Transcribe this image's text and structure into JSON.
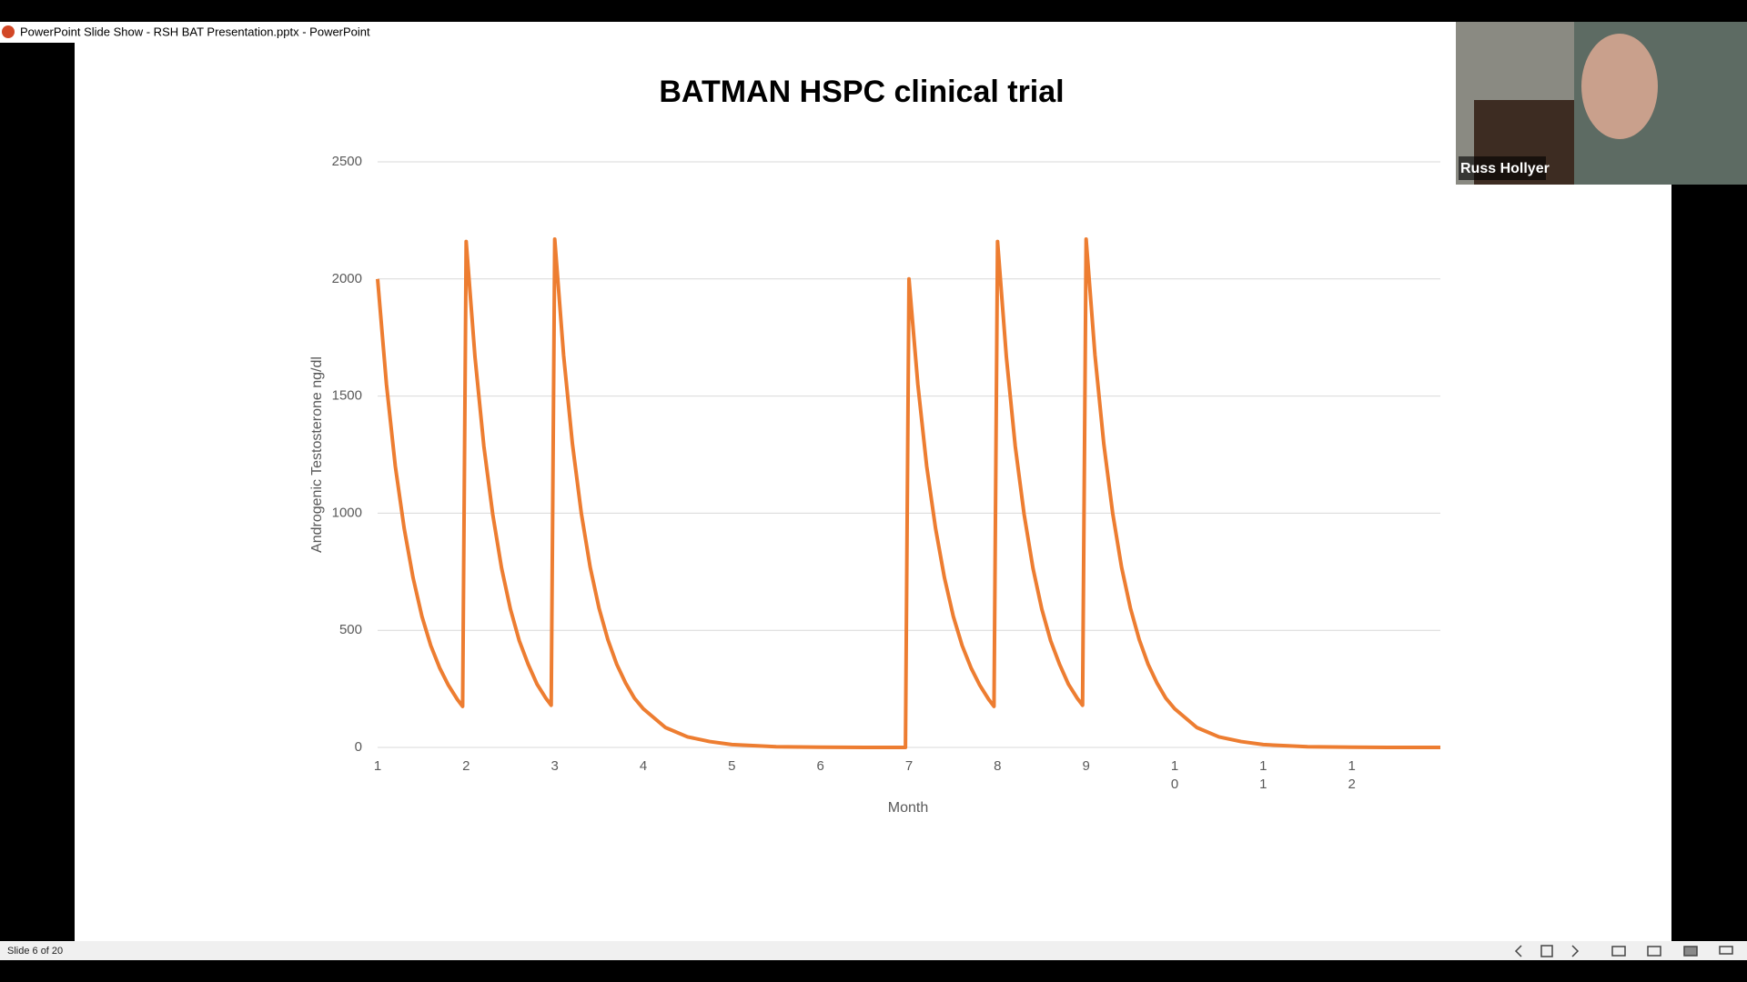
{
  "window": {
    "title": "PowerPoint Slide Show  -  RSH BAT Presentation.pptx - PowerPoint"
  },
  "chart_data": {
    "type": "line",
    "title": "BATMAN HSPC clinical trial",
    "x_label": "Month",
    "y_label": "Androgenic Testosterone ng/dl",
    "color": "#ED7D31",
    "grid": true,
    "xlim": [
      1,
      13
    ],
    "xticks": [
      1,
      2,
      3,
      4,
      5,
      6,
      7,
      8,
      9,
      10,
      11,
      12
    ],
    "ylim": [
      0,
      2500
    ],
    "yticks": [
      0,
      500,
      1000,
      1500,
      2000,
      2500
    ],
    "x": [
      1,
      1.1,
      1.2,
      1.3,
      1.4,
      1.5,
      1.6,
      1.7,
      1.8,
      1.9,
      1.96,
      2,
      2.1,
      2.2,
      2.3,
      2.4,
      2.5,
      2.6,
      2.7,
      2.8,
      2.9,
      2.96,
      3,
      3.1,
      3.2,
      3.3,
      3.4,
      3.5,
      3.6,
      3.7,
      3.8,
      3.9,
      4,
      4.25,
      4.5,
      4.75,
      5,
      5.5,
      6,
      6.5,
      6.96,
      7,
      7.1,
      7.2,
      7.3,
      7.4,
      7.5,
      7.6,
      7.7,
      7.8,
      7.9,
      7.96,
      8,
      8.1,
      8.2,
      8.3,
      8.4,
      8.5,
      8.6,
      8.7,
      8.8,
      8.9,
      8.96,
      9,
      9.1,
      9.2,
      9.3,
      9.4,
      9.5,
      9.6,
      9.7,
      9.8,
      9.9,
      10,
      10.25,
      10.5,
      10.75,
      11,
      11.5,
      12,
      12.5,
      13
    ],
    "values": [
      2000,
      1550,
      1200,
      935,
      725,
      560,
      435,
      340,
      265,
      205,
      175,
      2160,
      1665,
      1285,
      995,
      765,
      590,
      455,
      355,
      270,
      210,
      180,
      2170,
      1675,
      1295,
      1000,
      770,
      595,
      460,
      355,
      275,
      210,
      165,
      85,
      45,
      25,
      12,
      3,
      1,
      0,
      0,
      2000,
      1550,
      1200,
      935,
      725,
      560,
      435,
      340,
      265,
      205,
      175,
      2160,
      1665,
      1285,
      995,
      765,
      590,
      455,
      355,
      270,
      210,
      180,
      2170,
      1675,
      1295,
      1000,
      770,
      595,
      460,
      355,
      275,
      210,
      165,
      85,
      45,
      25,
      12,
      3,
      1,
      0,
      0
    ]
  },
  "video": {
    "name": "Russ Hollyer"
  },
  "status": {
    "slide_label": "Slide 6 of 20"
  }
}
